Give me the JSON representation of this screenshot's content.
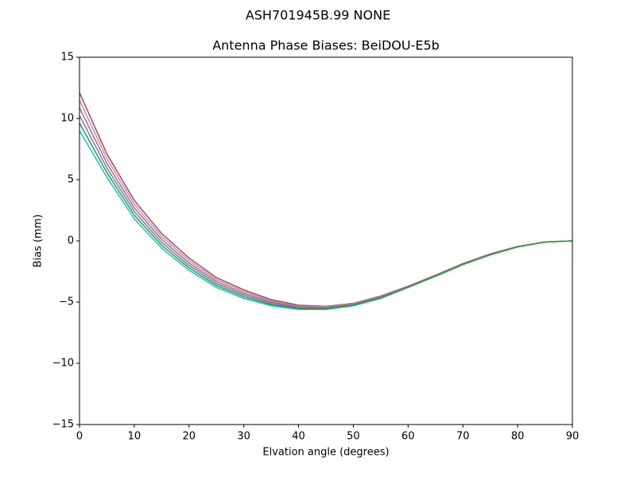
{
  "chart_data": {
    "type": "line",
    "suptitle": "ASH701945B.99   NONE",
    "title": "Antenna Phase Biases: BeiDOU-E5b",
    "xlabel": "Elvation angle (degrees)",
    "ylabel": "Bias (mm)",
    "x": [
      0,
      5,
      10,
      15,
      20,
      25,
      30,
      35,
      40,
      45,
      50,
      55,
      60,
      65,
      70,
      75,
      80,
      85,
      90
    ],
    "series": [
      {
        "color": "#8c564b",
        "values": [
          12.1,
          7.1,
          3.3,
          0.6,
          -1.4,
          -3.0,
          -4.0,
          -4.8,
          -5.25,
          -5.35,
          -5.1,
          -4.5,
          -3.7,
          -2.8,
          -1.85,
          -1.05,
          -0.45,
          -0.08,
          0
        ]
      },
      {
        "color": "#e377c2",
        "values": [
          11.48,
          6.72,
          3.0,
          0.36,
          -1.6,
          -3.16,
          -4.14,
          -4.9,
          -5.32,
          -5.39,
          -5.14,
          -4.54,
          -3.72,
          -2.82,
          -1.87,
          -1.07,
          -0.46,
          -0.08,
          0
        ]
      },
      {
        "color": "#7f7f7f",
        "values": [
          10.86,
          6.34,
          2.7,
          0.12,
          -1.8,
          -3.32,
          -4.28,
          -5.0,
          -5.39,
          -5.44,
          -5.18,
          -4.58,
          -3.74,
          -2.84,
          -1.89,
          -1.09,
          -0.47,
          -0.09,
          0
        ]
      },
      {
        "color": "#9467bd",
        "values": [
          10.24,
          5.96,
          2.4,
          -0.12,
          -2.0,
          -3.48,
          -4.42,
          -5.1,
          -5.46,
          -5.5,
          -5.22,
          -4.62,
          -3.76,
          -2.86,
          -1.91,
          -1.11,
          -0.48,
          -0.09,
          0
        ]
      },
      {
        "color": "#17becf",
        "values": [
          9.0,
          5.2,
          1.8,
          -0.6,
          -2.4,
          -3.8,
          -4.7,
          -5.3,
          -5.6,
          -5.6,
          -5.3,
          -4.7,
          -3.8,
          -2.9,
          -1.95,
          -1.15,
          -0.5,
          -0.1,
          0
        ]
      },
      {
        "color": "#2ca02c",
        "values": [
          9.62,
          5.58,
          2.1,
          -0.36,
          -2.2,
          -3.64,
          -4.56,
          -5.2,
          -5.53,
          -5.55,
          -5.26,
          -4.66,
          -3.78,
          -2.88,
          -1.93,
          -1.13,
          -0.49,
          -0.1,
          0
        ]
      }
    ],
    "xlim": [
      0,
      90
    ],
    "xticks": [
      0,
      10,
      20,
      30,
      40,
      50,
      60,
      70,
      80,
      90
    ],
    "ylim": [
      -15,
      15
    ],
    "yticks": [
      {
        "value": -15,
        "label": "−15"
      },
      {
        "value": -10,
        "label": "−10"
      },
      {
        "value": -5,
        "label": "−5"
      },
      0,
      5,
      10,
      15
    ]
  }
}
